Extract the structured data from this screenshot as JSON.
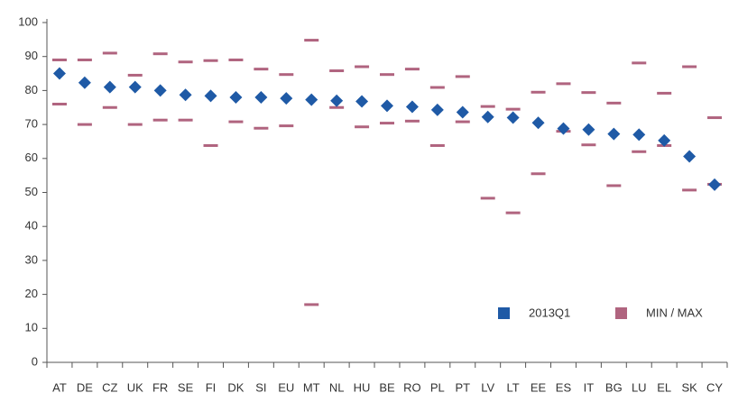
{
  "chart_data": {
    "type": "range-dot",
    "categories": [
      "AT",
      "DE",
      "CZ",
      "UK",
      "FR",
      "SE",
      "FI",
      "DK",
      "SI",
      "EU",
      "MT",
      "NL",
      "HU",
      "BE",
      "RO",
      "PL",
      "PT",
      "LV",
      "LT",
      "EE",
      "ES",
      "IT",
      "BG",
      "LU",
      "EL",
      "SK",
      "CY"
    ],
    "series": [
      {
        "name": "2013Q1",
        "color": "#1f5aa6",
        "marker": "diamond",
        "values": [
          85,
          82.3,
          81,
          81,
          80,
          78.7,
          78.4,
          78,
          78,
          77.7,
          77.3,
          77,
          76.8,
          75.5,
          75.2,
          74.3,
          73.6,
          72.2,
          72,
          70.5,
          68.8,
          68.5,
          67.2,
          67,
          65.3,
          60.6,
          52.3
        ]
      },
      {
        "name": "MIN / MAX",
        "color": "#b0647f",
        "marker": "dash",
        "low": [
          76,
          70,
          75,
          70,
          71.3,
          71.3,
          63.8,
          70.8,
          68.9,
          69.6,
          17,
          75,
          69.3,
          70.4,
          71,
          63.8,
          70.8,
          48.3,
          44,
          55.5,
          68,
          64,
          52,
          62,
          63.8,
          50.7,
          52.4
        ],
        "high": [
          89,
          89,
          91,
          84.5,
          90.8,
          88.4,
          88.8,
          89,
          86.3,
          84.7,
          94.8,
          85.8,
          87,
          84.7,
          86.3,
          80.9,
          84.1,
          75.3,
          74.5,
          79.5,
          82,
          79.4,
          76.3,
          88.1,
          79.2,
          87,
          72
        ]
      }
    ],
    "ylim": [
      0,
      100
    ],
    "yticks": [
      0,
      10,
      20,
      30,
      40,
      50,
      60,
      70,
      80,
      90,
      100
    ],
    "grid": false,
    "legend": "bottom-right"
  }
}
